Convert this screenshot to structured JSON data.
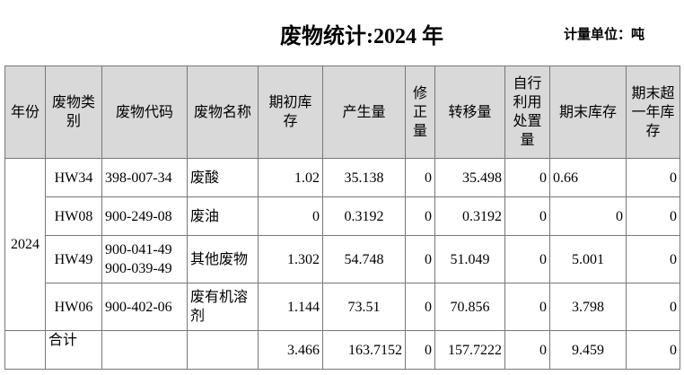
{
  "header": {
    "title": "废物统计:2024 年",
    "unit": "计量单位：吨"
  },
  "table": {
    "columns": [
      [
        "年份"
      ],
      [
        "废物类",
        "别"
      ],
      [
        "废物代码"
      ],
      [
        "废物名称"
      ],
      [
        "期初库",
        "存"
      ],
      [
        "产生量"
      ],
      [
        "修",
        "正",
        "量"
      ],
      [
        "转移量"
      ],
      [
        "自行",
        "利用",
        "处置",
        "量"
      ],
      [
        "期末库存"
      ],
      [
        "期末超",
        "一年库",
        "存"
      ]
    ],
    "year": "2024",
    "rows": [
      [
        [
          "HW34"
        ],
        [
          "398-007-34"
        ],
        [
          "废酸"
        ],
        [
          "1.02"
        ],
        [
          "35.138"
        ],
        [
          "0"
        ],
        [
          "35.498"
        ],
        [
          "0"
        ],
        [
          "0.66"
        ],
        [
          "0"
        ]
      ],
      [
        [
          "HW08"
        ],
        [
          "900-249-08"
        ],
        [
          "废油"
        ],
        [
          "0"
        ],
        [
          "0.3192"
        ],
        [
          "0"
        ],
        [
          "0.3192"
        ],
        [
          "0"
        ],
        [
          "0"
        ],
        [
          "0"
        ]
      ],
      [
        [
          "HW49"
        ],
        [
          "900-041-49",
          "900-039-49"
        ],
        [
          "其他废物"
        ],
        [
          "1.302"
        ],
        [
          "54.748"
        ],
        [
          "0"
        ],
        [
          "51.049"
        ],
        [
          "0"
        ],
        [
          "5.001"
        ],
        [
          "0"
        ]
      ],
      [
        [
          "HW06"
        ],
        [
          "900-402-06"
        ],
        [
          "废有机溶",
          "剂"
        ],
        [
          "1.144"
        ],
        [
          "73.51"
        ],
        [
          "0"
        ],
        [
          "70.856"
        ],
        [
          "0"
        ],
        [
          "3.798"
        ],
        [
          "0"
        ]
      ]
    ],
    "total": {
      "label": "合计",
      "values": [
        "3.466",
        "163.7152",
        "0",
        "157.7222",
        "0",
        "9.459",
        "0"
      ]
    }
  }
}
